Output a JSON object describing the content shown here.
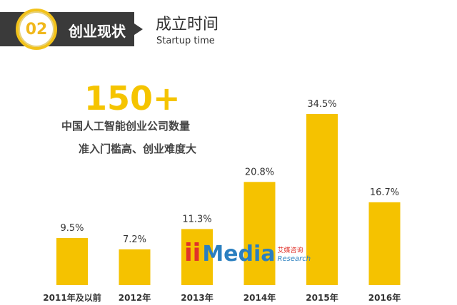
{
  "header": {
    "badge_number": "02",
    "section": "创业现状",
    "title": "成立时间",
    "subtitle": "Startup time"
  },
  "highlight": {
    "number": "150+",
    "line1": "中国人工智能创业公司数量",
    "line2": "准入门槛高、创业难度大"
  },
  "watermark": {
    "brand": "Media",
    "cn": "艾媒咨询",
    "en": "Research"
  },
  "chart_data": {
    "type": "bar",
    "categories": [
      "2011年及以前",
      "2012年",
      "2013年",
      "2014年",
      "2015年",
      "2016年"
    ],
    "values": [
      9.5,
      7.2,
      11.3,
      20.8,
      34.5,
      16.7
    ],
    "labels": [
      "9.5%",
      "7.2%",
      "11.3%",
      "20.8%",
      "34.5%",
      "16.7%"
    ],
    "color": "#f5c200",
    "ylim": [
      0,
      34.5
    ]
  }
}
